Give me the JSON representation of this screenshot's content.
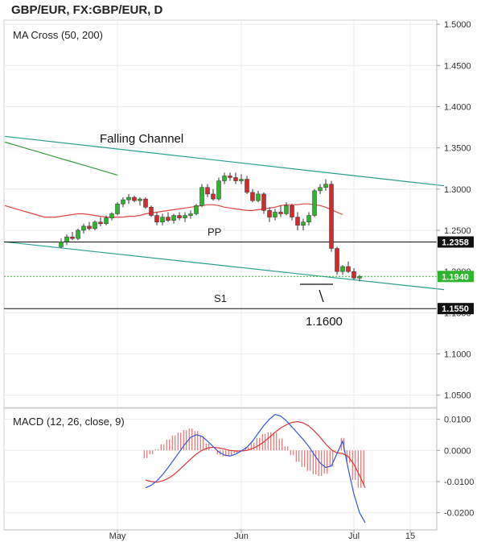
{
  "window_title": "GBP/EUR, FX:GBP/EUR, D",
  "chart_data": [
    {
      "type": "candlestick",
      "title": "MA Cross (50, 200)",
      "ylim": [
        1.035,
        1.505
      ],
      "y_ticks": [
        "1.5000",
        "1.4500",
        "1.4000",
        "1.3500",
        "1.3000",
        "1.2500",
        "1.2000",
        "1.1500",
        "1.1000",
        "1.0500"
      ],
      "x_ticks": [
        {
          "label": "May",
          "index": 20
        },
        {
          "label": "Jun",
          "index": 42
        },
        {
          "label": "Jul",
          "index": 62
        },
        {
          "label": "15",
          "index": 72
        }
      ],
      "colors": {
        "up": "#2db52d",
        "down": "#d32b2b",
        "ma50": "#e04444",
        "ma200": "#3d9a3d",
        "channel": "#2a9d8f",
        "support": "#111111",
        "last": "#2db52d"
      },
      "ohlc": [
        [
          1.23,
          1.24,
          1.228,
          1.236
        ],
        [
          1.236,
          1.245,
          1.232,
          1.242
        ],
        [
          1.242,
          1.248,
          1.238,
          1.24
        ],
        [
          1.24,
          1.252,
          1.238,
          1.25
        ],
        [
          1.25,
          1.258,
          1.246,
          1.255
        ],
        [
          1.255,
          1.26,
          1.25,
          1.252
        ],
        [
          1.252,
          1.262,
          1.25,
          1.26
        ],
        [
          1.26,
          1.266,
          1.255,
          1.258
        ],
        [
          1.258,
          1.268,
          1.256,
          1.265
        ],
        [
          1.265,
          1.272,
          1.262,
          1.27
        ],
        [
          1.27,
          1.284,
          1.268,
          1.282
        ],
        [
          1.282,
          1.29,
          1.278,
          1.287
        ],
        [
          1.287,
          1.294,
          1.282,
          1.29
        ],
        [
          1.29,
          1.292,
          1.284,
          1.286
        ],
        [
          1.286,
          1.29,
          1.28,
          1.288
        ],
        [
          1.288,
          1.29,
          1.276,
          1.278
        ],
        [
          1.278,
          1.28,
          1.266,
          1.268
        ],
        [
          1.268,
          1.272,
          1.256,
          1.26
        ],
        [
          1.26,
          1.27,
          1.256,
          1.266
        ],
        [
          1.266,
          1.272,
          1.26,
          1.262
        ],
        [
          1.262,
          1.27,
          1.258,
          1.268
        ],
        [
          1.268,
          1.272,
          1.262,
          1.265
        ],
        [
          1.265,
          1.272,
          1.26,
          1.268
        ],
        [
          1.268,
          1.274,
          1.264,
          1.27
        ],
        [
          1.27,
          1.282,
          1.268,
          1.28
        ],
        [
          1.28,
          1.306,
          1.278,
          1.302
        ],
        [
          1.302,
          1.306,
          1.29,
          1.294
        ],
        [
          1.294,
          1.3,
          1.286,
          1.288
        ],
        [
          1.288,
          1.314,
          1.286,
          1.31
        ],
        [
          1.31,
          1.32,
          1.306,
          1.316
        ],
        [
          1.316,
          1.32,
          1.31,
          1.314
        ],
        [
          1.314,
          1.32,
          1.306,
          1.31
        ],
        [
          1.31,
          1.318,
          1.306,
          1.312
        ],
        [
          1.312,
          1.316,
          1.294,
          1.296
        ],
        [
          1.296,
          1.3,
          1.284,
          1.286
        ],
        [
          1.286,
          1.298,
          1.284,
          1.294
        ],
        [
          1.294,
          1.296,
          1.27,
          1.274
        ],
        [
          1.274,
          1.278,
          1.26,
          1.266
        ],
        [
          1.266,
          1.276,
          1.262,
          1.272
        ],
        [
          1.272,
          1.28,
          1.266,
          1.27
        ],
        [
          1.27,
          1.284,
          1.268,
          1.28
        ],
        [
          1.28,
          1.282,
          1.262,
          1.266
        ],
        [
          1.266,
          1.272,
          1.25,
          1.256
        ],
        [
          1.256,
          1.264,
          1.25,
          1.26
        ],
        [
          1.26,
          1.272,
          1.256,
          1.268
        ],
        [
          1.268,
          1.3,
          1.266,
          1.298
        ],
        [
          1.298,
          1.306,
          1.294,
          1.302
        ],
        [
          1.302,
          1.312,
          1.298,
          1.306
        ],
        [
          1.306,
          1.31,
          1.224,
          1.228
        ],
        [
          1.228,
          1.23,
          1.196,
          1.2
        ],
        [
          1.2,
          1.208,
          1.196,
          1.206
        ],
        [
          1.206,
          1.212,
          1.198,
          1.2
        ],
        [
          1.2,
          1.204,
          1.19,
          1.192
        ],
        [
          1.192,
          1.196,
          1.188,
          1.194
        ]
      ],
      "start_index": 10,
      "ma50": [
        1.28,
        1.278,
        1.276,
        1.274,
        1.272,
        1.27,
        1.268,
        1.266,
        1.266,
        1.266,
        1.267,
        1.268,
        1.269,
        1.27,
        1.27,
        1.269,
        1.268,
        1.267,
        1.266,
        1.266,
        1.266,
        1.266,
        1.267,
        1.267,
        1.268,
        1.27,
        1.271,
        1.272,
        1.273,
        1.274,
        1.275,
        1.276,
        1.277,
        1.278,
        1.279,
        1.28,
        1.281,
        1.281,
        1.28,
        1.278,
        1.277,
        1.276,
        1.275,
        1.274,
        1.274,
        1.275,
        1.276,
        1.277,
        1.278,
        1.28,
        1.281,
        1.281,
        1.281,
        1.282,
        1.282,
        1.281,
        1.28,
        1.278,
        1.275,
        1.272,
        1.269
      ],
      "ma200": [
        1.357,
        1.355,
        1.353,
        1.351,
        1.349,
        1.347,
        1.345,
        1.343,
        1.341,
        1.339,
        1.337,
        1.335,
        1.333,
        1.331,
        1.329,
        1.327,
        1.325,
        1.323,
        1.321,
        1.319,
        1.317
      ],
      "channel_upper": [
        [
          0,
          1.364
        ],
        [
          78,
          1.304
        ]
      ],
      "channel_lower": [
        [
          0,
          1.236
        ],
        [
          78,
          1.178
        ]
      ],
      "support_lines": [
        {
          "label": "PP",
          "value": 1.2358,
          "badge": "1.2358"
        },
        {
          "label": "S1",
          "value": 1.155,
          "badge": "1.1550"
        }
      ],
      "last_price": {
        "value": 1.194,
        "badge": "1.1940"
      },
      "annotations": [
        {
          "text": "Falling Channel"
        },
        {
          "text": "1.1600"
        }
      ]
    },
    {
      "type": "line",
      "title": "MACD (12, 26, close, 9)",
      "ylim": [
        -0.0255,
        0.0135
      ],
      "y_ticks": [
        "0.0100",
        "0.0000",
        "-0.0100",
        "-0.0200"
      ],
      "colors": {
        "macd": "#3355dd",
        "signal": "#e03333",
        "histogram": "#e05555"
      },
      "macd": [
        -0.012,
        -0.0112,
        -0.0098,
        -0.0078,
        -0.0055,
        -0.003,
        -0.0005,
        0.002,
        0.0042,
        0.005,
        0.0045,
        0.003,
        0.0012,
        -0.0005,
        -0.0015,
        -0.0018,
        -0.0012,
        -0.0002,
        0.001,
        0.003,
        0.0055,
        0.008,
        0.01,
        0.0115,
        0.011,
        0.0095,
        0.0075,
        0.0055,
        0.0035,
        0.0012,
        -0.0015,
        -0.004,
        -0.0055,
        -0.005,
        -0.001,
        0.003,
        -0.006,
        -0.014,
        -0.02,
        -0.0232
      ],
      "signal": [
        -0.0095,
        -0.01,
        -0.0102,
        -0.0098,
        -0.009,
        -0.0078,
        -0.0062,
        -0.0045,
        -0.0028,
        -0.0012,
        0.0,
        0.0008,
        0.001,
        0.0008,
        0.0004,
        0.0,
        -0.0002,
        -0.0002,
        0.0,
        0.0006,
        0.0015,
        0.0027,
        0.0042,
        0.0058,
        0.0072,
        0.0082,
        0.009,
        0.0092,
        0.0088,
        0.0078,
        0.0062,
        0.0042,
        0.002,
        0.0002,
        -0.0008,
        -0.001,
        -0.002,
        -0.0045,
        -0.008,
        -0.012
      ]
    }
  ]
}
